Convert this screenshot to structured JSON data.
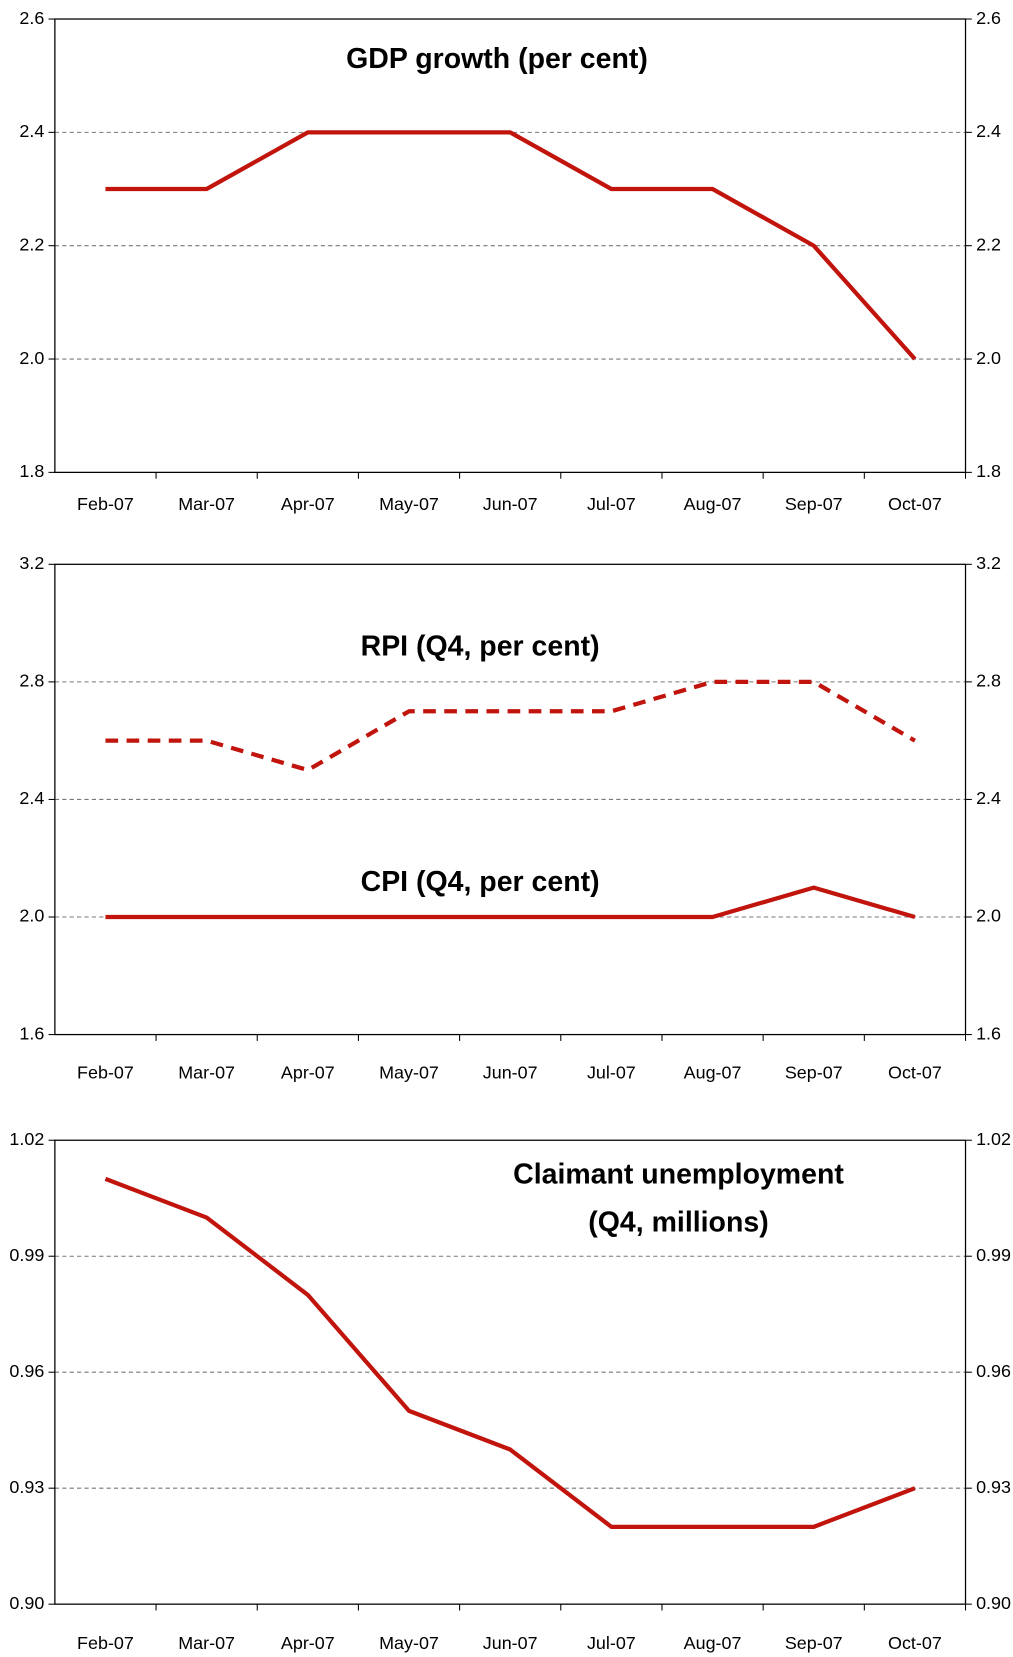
{
  "chart_data": [
    {
      "type": "line",
      "title": [
        "GDP growth (per cent)"
      ],
      "categories": [
        "Feb-07",
        "Mar-07",
        "Apr-07",
        "May-07",
        "Jun-07",
        "Jul-07",
        "Aug-07",
        "Sep-07",
        "Oct-07"
      ],
      "values": [
        2.3,
        2.3,
        2.4,
        2.4,
        2.4,
        2.3,
        2.3,
        2.2,
        2.0
      ],
      "color": "#c0140c",
      "ylim": [
        1.8,
        2.6
      ],
      "yticks": [
        1.8,
        {
          "value": 2,
          "label": "2.0"
        },
        2.2,
        2.4,
        2.6
      ],
      "grid": true
    },
    {
      "type": "line",
      "categories": [
        "Feb-07",
        "Mar-07",
        "Apr-07",
        "May-07",
        "Jun-07",
        "Jul-07",
        "Aug-07",
        "Sep-07",
        "Oct-07"
      ],
      "series": [
        {
          "name": "RPI (Q4, per cent)",
          "color": "#c0140c",
          "dashed": true,
          "values": [
            2.6,
            2.6,
            2.5,
            2.7,
            2.7,
            2.7,
            2.8,
            2.8,
            2.6
          ]
        },
        {
          "name": "CPI (Q4, per cent)",
          "color": "#c0140c",
          "dashed": false,
          "values": [
            2.0,
            2.0,
            2.0,
            2.0,
            2.0,
            2.0,
            2.0,
            2.1,
            2.0
          ]
        }
      ],
      "ylim": [
        1.6,
        3.2
      ],
      "yticks": [
        1.6,
        {
          "value": 2,
          "label": "2.0"
        },
        2.4,
        2.8,
        3.2
      ],
      "grid": true
    },
    {
      "type": "line",
      "title": [
        "Claimant unemployment",
        "(Q4, millions)"
      ],
      "categories": [
        "Feb-07",
        "Mar-07",
        "Apr-07",
        "May-07",
        "Jun-07",
        "Jul-07",
        "Aug-07",
        "Sep-07",
        "Oct-07"
      ],
      "values": [
        1.01,
        1.0,
        0.98,
        0.95,
        0.94,
        0.92,
        0.92,
        0.92,
        0.93
      ],
      "color": "#c0140c",
      "ylim": [
        0.9,
        1.02
      ],
      "yticks": [
        {
          "value": 0.9,
          "label": "0.90"
        },
        0.93,
        0.96,
        0.99,
        1.02
      ],
      "grid": true
    }
  ]
}
